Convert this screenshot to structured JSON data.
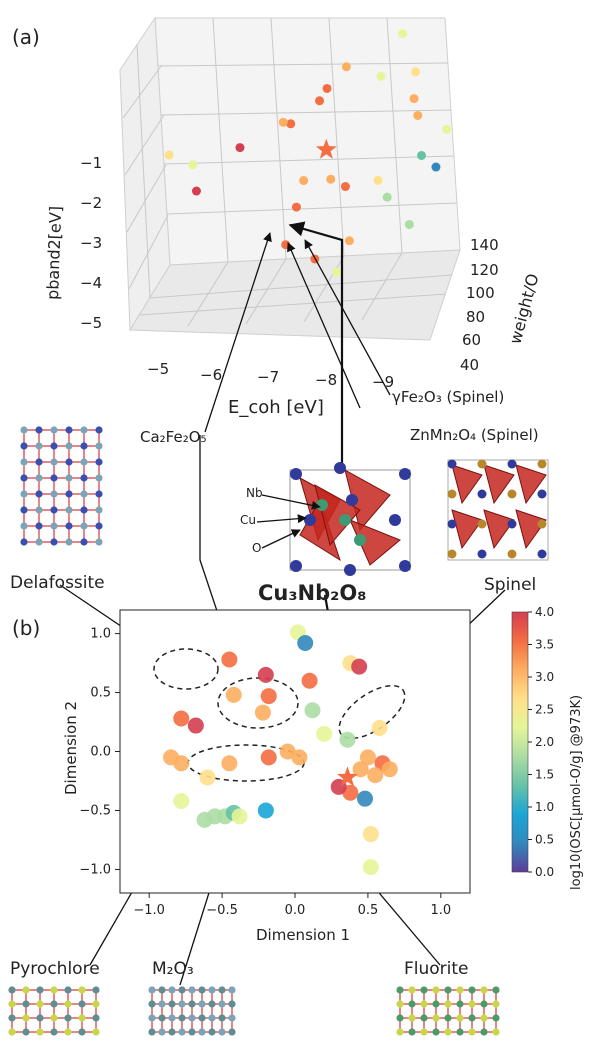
{
  "panels": {
    "a": "(a)",
    "b": "(b)"
  },
  "labels": {
    "gamma": "γFe₂O₃ (Spinel)",
    "znmn": "ZnMn₂O₄ (Spinel)",
    "ca2fe2o5": "Ca₂Fe₂O₅",
    "delafossite": "Delafossite",
    "spinel": "Spinel",
    "cu3nb2o8": "Cu₃Nb₂O₈",
    "pyrochlore": "Pyrochlore",
    "m2o3": "M₂O₃",
    "fluorite": "Fluorite",
    "atom_nb": "Nb",
    "atom_cu": "Cu",
    "atom_o": "O"
  },
  "colorscale": [
    "#5e3c99",
    "#3288bd",
    "#1aa6d6",
    "#66c2a5",
    "#abdda4",
    "#e6f598",
    "#fee08b",
    "#fdae61",
    "#f46d43",
    "#d53e4f"
  ],
  "chart_data": [
    {
      "type": "scatter",
      "projection": "3d",
      "xlabel": "E_coh [eV]",
      "ylabel": "weight/O",
      "zlabel": "pband2[eV]",
      "xticks": [
        -5,
        -6,
        -7,
        -8,
        -9
      ],
      "yticks": [
        40,
        60,
        80,
        100,
        120,
        140
      ],
      "zticks": [
        -1,
        -2,
        -3,
        -4,
        -5
      ],
      "xlim": [
        -4.5,
        -9.8
      ],
      "ylim": [
        40,
        155
      ],
      "zlim": [
        -5.6,
        -0.4
      ],
      "marker_star": {
        "x": -7.6,
        "y": 88,
        "z": -2.5,
        "color": "#f46d43"
      },
      "points": [
        {
          "x": -8.6,
          "y": 150,
          "z": -0.9,
          "c": 2.0
        },
        {
          "x": -7.7,
          "y": 130,
          "z": -1.3,
          "c": 3.2
        },
        {
          "x": -8.3,
          "y": 135,
          "z": -1.6,
          "c": 2.3
        },
        {
          "x": -8.9,
          "y": 140,
          "z": -1.6,
          "c": 2.6
        },
        {
          "x": -9.0,
          "y": 120,
          "z": -1.9,
          "c": 2.9
        },
        {
          "x": -9.1,
          "y": 115,
          "z": -2.2,
          "c": 3.0
        },
        {
          "x": -7.6,
          "y": 90,
          "z": -1.2,
          "c": 3.4
        },
        {
          "x": -7.4,
          "y": 100,
          "z": -1.6,
          "c": 3.6
        },
        {
          "x": -7.0,
          "y": 80,
          "z": -1.8,
          "c": 3.7
        },
        {
          "x": -6.8,
          "y": 90,
          "z": -1.9,
          "c": 3.3
        },
        {
          "x": -6.2,
          "y": 60,
          "z": -2.0,
          "c": 3.9
        },
        {
          "x": -5.4,
          "y": 50,
          "z": -2.2,
          "c": 2.4
        },
        {
          "x": -5.0,
          "y": 45,
          "z": -1.9,
          "c": 2.6
        },
        {
          "x": -5.5,
          "y": 45,
          "z": -2.7,
          "c": 3.8
        },
        {
          "x": -7.3,
          "y": 70,
          "z": -2.9,
          "c": 3.0
        },
        {
          "x": -7.7,
          "y": 85,
          "z": -3.1,
          "c": 3.3
        },
        {
          "x": -8.0,
          "y": 80,
          "z": -3.2,
          "c": 3.5
        },
        {
          "x": -7.2,
          "y": 65,
          "z": -3.4,
          "c": 3.6
        },
        {
          "x": -8.5,
          "y": 95,
          "z": -3.3,
          "c": 2.8
        },
        {
          "x": -8.7,
          "y": 90,
          "z": -3.6,
          "c": 1.8
        },
        {
          "x": -9.2,
          "y": 110,
          "z": -3.0,
          "c": 1.2
        },
        {
          "x": -9.4,
          "y": 120,
          "z": -3.4,
          "c": 0.6
        },
        {
          "x": -9.2,
          "y": 75,
          "z": -4.0,
          "c": 1.6
        },
        {
          "x": -8.2,
          "y": 60,
          "z": -4.1,
          "c": 3.0
        },
        {
          "x": -7.1,
          "y": 50,
          "z": -4.0,
          "c": 3.7
        },
        {
          "x": -7.6,
          "y": 55,
          "z": -4.4,
          "c": 3.4
        },
        {
          "x": -8.0,
          "y": 55,
          "z": -4.7,
          "c": 2.2
        },
        {
          "x": -9.5,
          "y": 135,
          "z": -2.8,
          "c": 2.1
        }
      ]
    },
    {
      "type": "scatter",
      "xlabel": "Dimension 1",
      "ylabel": "Dimension 2",
      "xlim": [
        -1.2,
        1.2
      ],
      "ylim": [
        -1.2,
        1.2
      ],
      "xticks": [
        -1.0,
        -0.5,
        0.0,
        0.5,
        1.0
      ],
      "yticks": [
        -1.0,
        -0.5,
        0.0,
        0.5,
        1.0
      ],
      "colorbar": {
        "label": "log10(OSC[μmol-O/g] @973K)",
        "ticks": [
          0.0,
          0.5,
          1.0,
          1.5,
          2.0,
          2.5,
          3.0,
          3.5,
          4.0
        ],
        "range": [
          0,
          4
        ]
      },
      "marker_star": {
        "x": 0.36,
        "y": -0.22,
        "color": "#f46d43"
      },
      "points": [
        {
          "x": -0.78,
          "y": 0.28,
          "c": 3.6
        },
        {
          "x": -0.68,
          "y": 0.22,
          "c": 3.8
        },
        {
          "x": -0.45,
          "y": 0.78,
          "c": 3.7
        },
        {
          "x": -0.42,
          "y": 0.48,
          "c": 3.2
        },
        {
          "x": -0.2,
          "y": 0.65,
          "c": 3.9
        },
        {
          "x": -0.18,
          "y": 0.47,
          "c": 3.5
        },
        {
          "x": -0.22,
          "y": 0.33,
          "c": 3.3
        },
        {
          "x": 0.02,
          "y": 1.01,
          "c": 2.4
        },
        {
          "x": 0.07,
          "y": 0.92,
          "c": 0.3
        },
        {
          "x": 0.1,
          "y": 0.6,
          "c": 3.6
        },
        {
          "x": 0.12,
          "y": 0.35,
          "c": 1.8
        },
        {
          "x": 0.2,
          "y": 0.15,
          "c": 2.2
        },
        {
          "x": 0.38,
          "y": 0.75,
          "c": 2.8
        },
        {
          "x": 0.44,
          "y": 0.72,
          "c": 3.8
        },
        {
          "x": 0.36,
          "y": 0.1,
          "c": 1.6
        },
        {
          "x": 0.58,
          "y": 0.2,
          "c": 2.5
        },
        {
          "x": 0.5,
          "y": -0.05,
          "c": 3.0
        },
        {
          "x": 0.6,
          "y": -0.1,
          "c": 3.4
        },
        {
          "x": 0.45,
          "y": -0.15,
          "c": 3.1
        },
        {
          "x": 0.38,
          "y": -0.35,
          "c": 3.7
        },
        {
          "x": 0.3,
          "y": -0.3,
          "c": 3.9
        },
        {
          "x": 0.48,
          "y": -0.4,
          "c": 0.3
        },
        {
          "x": 0.65,
          "y": -0.15,
          "c": 3.2
        },
        {
          "x": 0.55,
          "y": -0.2,
          "c": 2.9
        },
        {
          "x": 0.52,
          "y": -0.7,
          "c": 2.7
        },
        {
          "x": 0.52,
          "y": -0.98,
          "c": 2.0
        },
        {
          "x": -0.85,
          "y": -0.05,
          "c": 3.3
        },
        {
          "x": -0.78,
          "y": -0.1,
          "c": 3.0
        },
        {
          "x": -0.6,
          "y": -0.22,
          "c": 2.6
        },
        {
          "x": -0.45,
          "y": -0.1,
          "c": 3.2
        },
        {
          "x": -0.18,
          "y": -0.05,
          "c": 3.4
        },
        {
          "x": -0.05,
          "y": 0.0,
          "c": 2.9
        },
        {
          "x": 0.03,
          "y": -0.05,
          "c": 3.1
        },
        {
          "x": -0.78,
          "y": -0.42,
          "c": 2.4
        },
        {
          "x": -0.62,
          "y": -0.58,
          "c": 1.8
        },
        {
          "x": -0.55,
          "y": -0.55,
          "c": 1.9
        },
        {
          "x": -0.48,
          "y": -0.55,
          "c": 1.7
        },
        {
          "x": -0.42,
          "y": -0.52,
          "c": 1.5
        },
        {
          "x": -0.38,
          "y": -0.55,
          "c": 2.0
        },
        {
          "x": -0.2,
          "y": -0.5,
          "c": 0.9
        }
      ]
    }
  ]
}
